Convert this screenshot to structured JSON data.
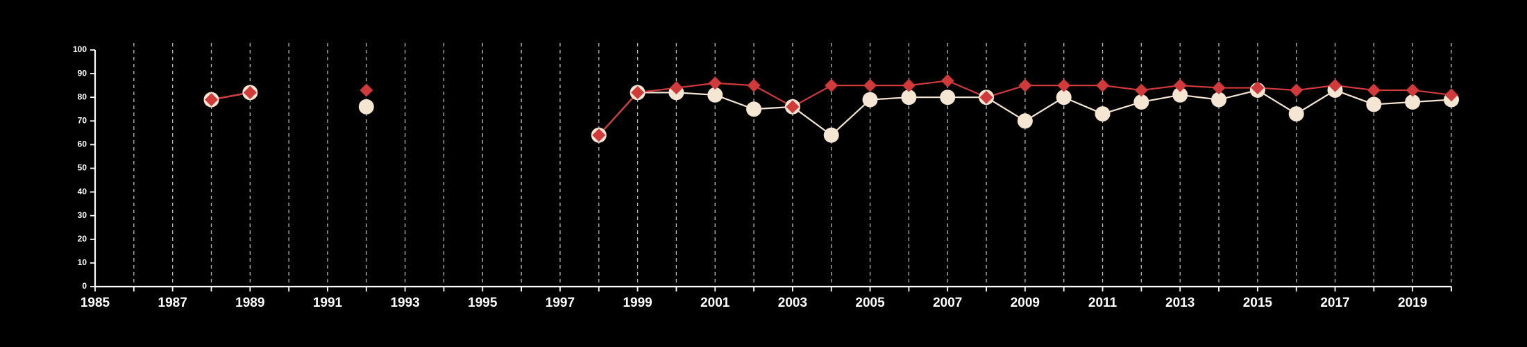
{
  "chart_data": {
    "type": "line",
    "title": "",
    "xlabel": "",
    "ylabel": "",
    "xlim": [
      1985,
      2020
    ],
    "ylim": [
      0,
      100
    ],
    "x_ticks": [
      1985,
      1987,
      1989,
      1991,
      1993,
      1995,
      1997,
      1999,
      2001,
      2003,
      2005,
      2007,
      2009,
      2011,
      2013,
      2015,
      2017,
      2019
    ],
    "y_ticks": [
      0,
      10,
      20,
      30,
      40,
      50,
      60,
      70,
      80,
      90,
      100
    ],
    "grid": {
      "vertical_dashed": true,
      "horizontal": false
    },
    "legend": "none",
    "background": "#000000",
    "axis_color": "#ffffff",
    "grid_color": "#bbbbbb",
    "series": [
      {
        "marker": "circle",
        "color": "#f5e6d3",
        "line_color": "#f5e6d3",
        "points": [
          {
            "x": 1988,
            "y": 79
          },
          {
            "x": 1989,
            "y": 82
          },
          {
            "x": 1992,
            "y": 76
          },
          {
            "x": 1998,
            "y": 64
          },
          {
            "x": 1999,
            "y": 82
          },
          {
            "x": 2000,
            "y": 82
          },
          {
            "x": 2001,
            "y": 81
          },
          {
            "x": 2002,
            "y": 75
          },
          {
            "x": 2003,
            "y": 76
          },
          {
            "x": 2004,
            "y": 64
          },
          {
            "x": 2005,
            "y": 79
          },
          {
            "x": 2006,
            "y": 80
          },
          {
            "x": 2007,
            "y": 80
          },
          {
            "x": 2008,
            "y": 80
          },
          {
            "x": 2009,
            "y": 70
          },
          {
            "x": 2010,
            "y": 80
          },
          {
            "x": 2011,
            "y": 73
          },
          {
            "x": 2012,
            "y": 78
          },
          {
            "x": 2013,
            "y": 81
          },
          {
            "x": 2014,
            "y": 79
          },
          {
            "x": 2015,
            "y": 83
          },
          {
            "x": 2016,
            "y": 73
          },
          {
            "x": 2017,
            "y": 83
          },
          {
            "x": 2018,
            "y": 77
          },
          {
            "x": 2019,
            "y": 78
          },
          {
            "x": 2020,
            "y": 79
          }
        ]
      },
      {
        "marker": "diamond",
        "color": "#d03a3a",
        "line_color": "#d03a3a",
        "points": [
          {
            "x": 1988,
            "y": 79
          },
          {
            "x": 1989,
            "y": 82
          },
          {
            "x": 1992,
            "y": 83
          },
          {
            "x": 1998,
            "y": 64
          },
          {
            "x": 1999,
            "y": 82
          },
          {
            "x": 2000,
            "y": 84
          },
          {
            "x": 2001,
            "y": 86
          },
          {
            "x": 2002,
            "y": 85
          },
          {
            "x": 2003,
            "y": 76
          },
          {
            "x": 2004,
            "y": 85
          },
          {
            "x": 2005,
            "y": 85
          },
          {
            "x": 2006,
            "y": 85
          },
          {
            "x": 2007,
            "y": 87
          },
          {
            "x": 2008,
            "y": 80
          },
          {
            "x": 2009,
            "y": 85
          },
          {
            "x": 2010,
            "y": 85
          },
          {
            "x": 2011,
            "y": 85
          },
          {
            "x": 2012,
            "y": 83
          },
          {
            "x": 2013,
            "y": 85
          },
          {
            "x": 2014,
            "y": 84
          },
          {
            "x": 2015,
            "y": 84
          },
          {
            "x": 2016,
            "y": 83
          },
          {
            "x": 2017,
            "y": 85
          },
          {
            "x": 2018,
            "y": 83
          },
          {
            "x": 2019,
            "y": 83
          },
          {
            "x": 2020,
            "y": 81
          }
        ]
      }
    ]
  }
}
